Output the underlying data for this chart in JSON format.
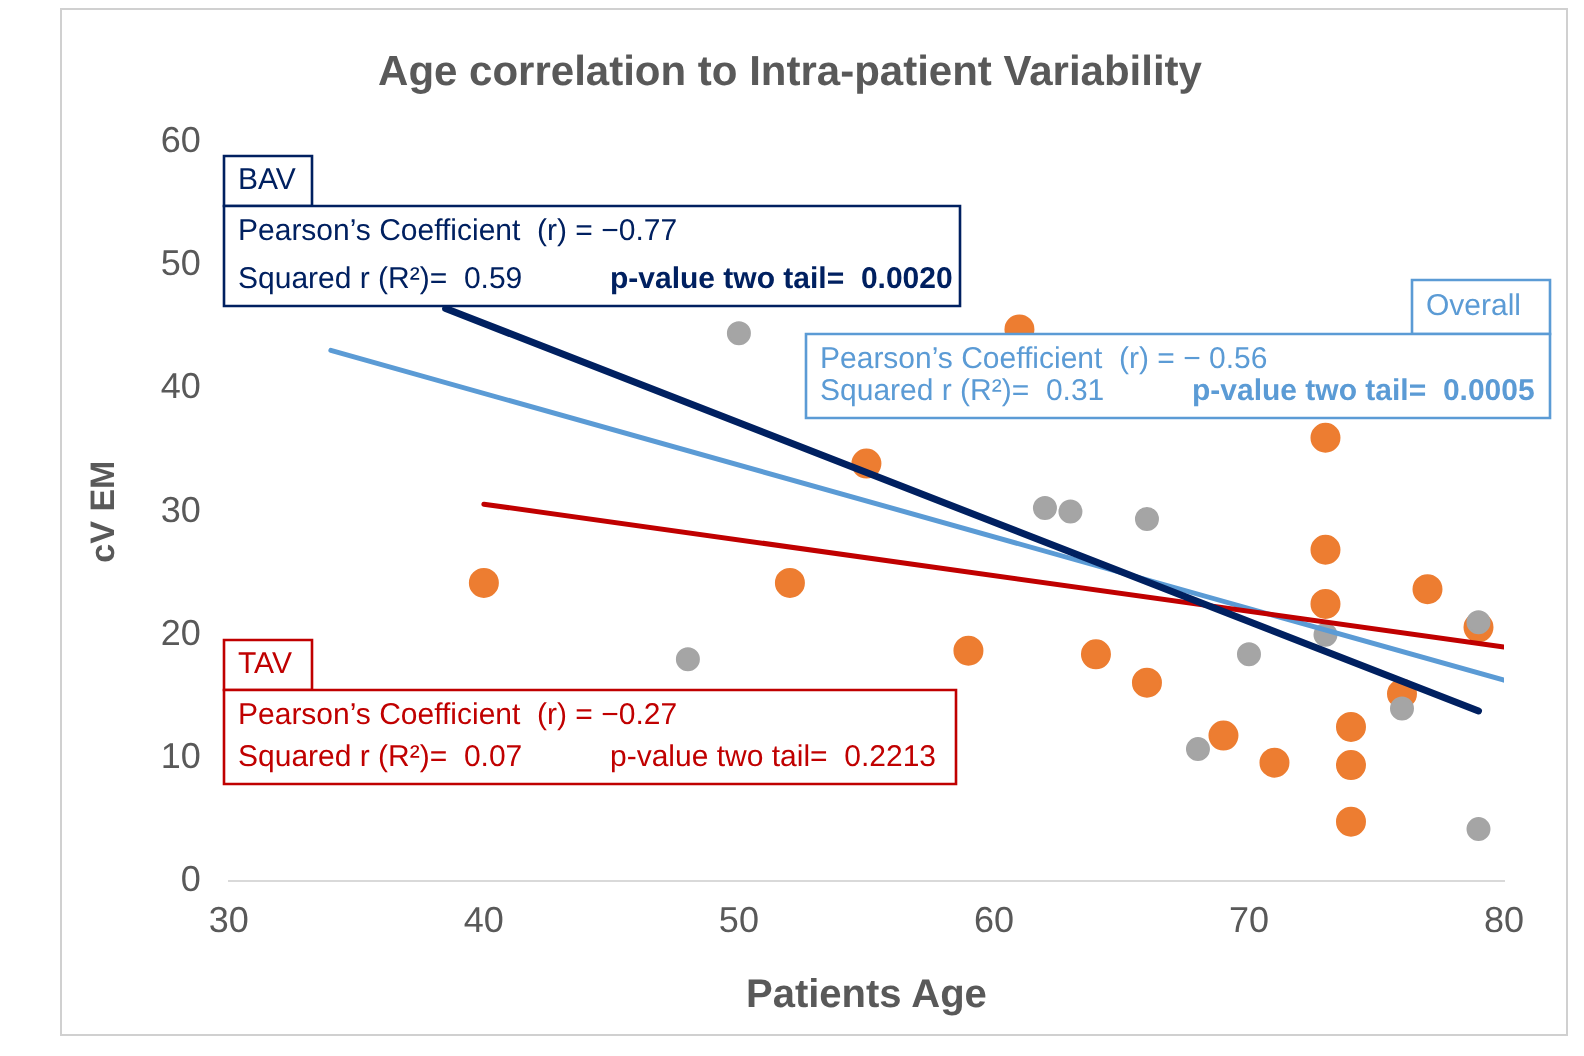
{
  "chart_data": {
    "type": "scatter",
    "title": "Age correlation to Intra-patient Variability",
    "xlabel": "Patients Age",
    "ylabel": "cV EM",
    "xlim": [
      30,
      80
    ],
    "xticks": [
      30,
      40,
      50,
      60,
      70,
      80
    ],
    "ylim": [
      0,
      60
    ],
    "yticks": [
      0,
      10,
      20,
      30,
      40,
      50,
      60
    ],
    "grid": false,
    "legend": false,
    "marker": "circle",
    "series": [
      {
        "type": "scatter",
        "color": "#a5a5a5",
        "x": [
          48,
          50,
          62,
          63,
          66,
          68,
          70,
          73,
          76,
          79,
          79
        ],
        "values": [
          18.0,
          44.5,
          30.3,
          30.0,
          29.4,
          10.7,
          18.4,
          20.0,
          14.0,
          21.0,
          4.2
        ]
      },
      {
        "type": "scatter",
        "color": "#ed7d31",
        "x": [
          40,
          52,
          55,
          59,
          61,
          64,
          66,
          69,
          71,
          73,
          73,
          73,
          74,
          74,
          74,
          76,
          77,
          79
        ],
        "values": [
          24.2,
          24.2,
          33.9,
          18.7,
          44.8,
          18.4,
          16.1,
          11.8,
          9.6,
          36.0,
          26.9,
          22.5,
          12.5,
          9.4,
          4.8,
          15.2,
          23.7,
          20.6
        ]
      },
      {
        "type": "line",
        "name": "BAV",
        "marker": "none",
        "color": "#002060",
        "x": [
          38.5,
          79
        ],
        "values": [
          46.5,
          13.8
        ]
      },
      {
        "type": "line",
        "name": "TAV",
        "marker": "none",
        "color": "#c00000",
        "x": [
          40,
          80
        ],
        "values": [
          30.6,
          19.0
        ]
      },
      {
        "type": "line",
        "name": "Overall",
        "marker": "none",
        "color": "#5b9bd5",
        "x": [
          34,
          80
        ],
        "values": [
          43.1,
          16.3
        ]
      }
    ],
    "annotations": [
      "Pearson’s Coefficient  (r) = −0.77",
      "Squared r (R²)=  0.59",
      "p-value two tail=  0.0020",
      "Pearson’s Coefficient  (r) = −0.27",
      "Squared r (R²)=  0.07",
      "p-value two tail=  0.2213",
      "Pearson’s Coefficient  (r) = − 0.56",
      "Squared r (R²)=  0.31",
      "p-value two tail=  0.0005"
    ]
  }
}
